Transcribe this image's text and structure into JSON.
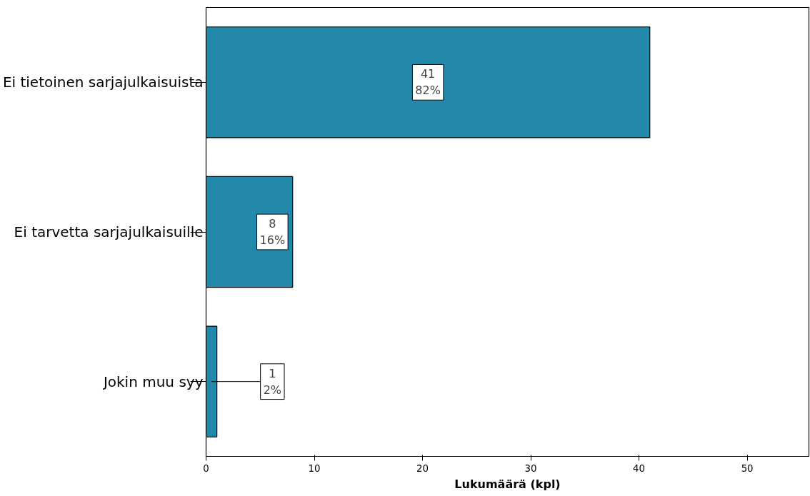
{
  "chart_data": {
    "type": "bar",
    "orientation": "horizontal",
    "categories": [
      "Ei tietoinen sarjajulkaisuista",
      "Ei tarvetta sarjajulkaisuille",
      "Jokin muu syy"
    ],
    "values": [
      41,
      8,
      1
    ],
    "value_labels": [
      "41\n82%",
      "8\n16%",
      "1\n2%"
    ],
    "color": "#2389aa",
    "xlabel": "Lukumäärä (kpl)",
    "xlim": [
      0,
      55.7
    ],
    "xticks": [
      0,
      10,
      20,
      30,
      40,
      50
    ],
    "grid": false
  }
}
